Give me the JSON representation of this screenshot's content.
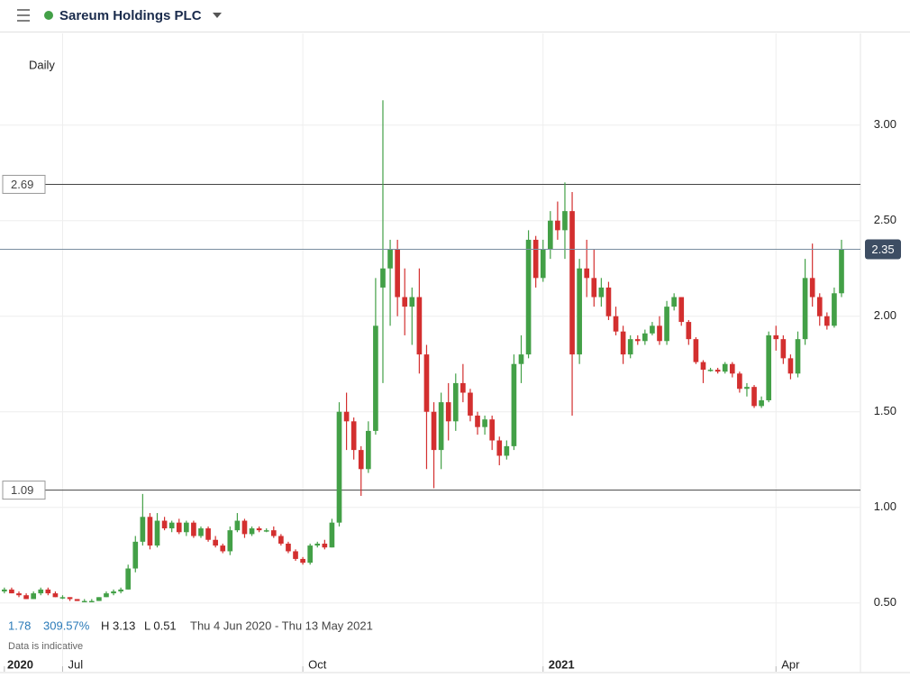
{
  "header": {
    "title": "Sareum Holdings PLC"
  },
  "chart_data": {
    "type": "candlestick",
    "interval": "Daily",
    "up_color": "#43a047",
    "down_color": "#d32f2f",
    "grid": true,
    "xlim": [
      -0.6,
      117.6
    ],
    "xticks": [
      {
        "value": 0,
        "label": "2020"
      },
      {
        "value": 8,
        "label": "Jul"
      },
      {
        "value": 41,
        "label": "Oct"
      },
      {
        "value": 74,
        "label": "2021"
      },
      {
        "value": 106,
        "label": "Apr"
      }
    ],
    "ylim": [
      0.14,
      3.48
    ],
    "yticks": [
      {
        "value": 0.5,
        "label": "0.50"
      },
      {
        "value": 1,
        "label": "1.00"
      },
      {
        "value": 1.5,
        "label": "1.50"
      },
      {
        "value": 2,
        "label": "2.00"
      },
      {
        "value": 2.5,
        "label": "2.50"
      },
      {
        "value": 3,
        "label": "3.00"
      }
    ],
    "hlines": [
      2.69,
      1.09
    ],
    "last_price": 2.35,
    "stats": {
      "change": "1.78",
      "change_pct": "309.57%",
      "high": "H 3.13",
      "low": "L 0.51",
      "range": "Thu 4 Jun 2020 - Thu 13 May 2021",
      "note": "Data is indicative"
    },
    "candles": [
      [
        0.56,
        0.58,
        0.55,
        0.57
      ],
      [
        0.57,
        0.58,
        0.55,
        0.55
      ],
      [
        0.55,
        0.56,
        0.53,
        0.54
      ],
      [
        0.54,
        0.55,
        0.52,
        0.52
      ],
      [
        0.52,
        0.56,
        0.52,
        0.55
      ],
      [
        0.55,
        0.58,
        0.54,
        0.57
      ],
      [
        0.57,
        0.58,
        0.54,
        0.55
      ],
      [
        0.55,
        0.56,
        0.53,
        0.53
      ],
      [
        0.53,
        0.54,
        0.52,
        0.53
      ],
      [
        0.53,
        0.53,
        0.51,
        0.52
      ],
      [
        0.52,
        0.52,
        0.51,
        0.51
      ],
      [
        0.51,
        0.52,
        0.51,
        0.51
      ],
      [
        0.51,
        0.52,
        0.51,
        0.51
      ],
      [
        0.51,
        0.53,
        0.51,
        0.53
      ],
      [
        0.53,
        0.56,
        0.53,
        0.55
      ],
      [
        0.55,
        0.57,
        0.54,
        0.56
      ],
      [
        0.56,
        0.58,
        0.55,
        0.57
      ],
      [
        0.57,
        0.7,
        0.57,
        0.68
      ],
      [
        0.68,
        0.85,
        0.66,
        0.82
      ],
      [
        0.82,
        1.07,
        0.8,
        0.95
      ],
      [
        0.95,
        0.97,
        0.78,
        0.8
      ],
      [
        0.8,
        0.97,
        0.79,
        0.93
      ],
      [
        0.93,
        0.95,
        0.88,
        0.89
      ],
      [
        0.89,
        0.93,
        0.87,
        0.92
      ],
      [
        0.92,
        0.94,
        0.86,
        0.87
      ],
      [
        0.87,
        0.93,
        0.85,
        0.92
      ],
      [
        0.92,
        0.93,
        0.84,
        0.85
      ],
      [
        0.85,
        0.9,
        0.84,
        0.89
      ],
      [
        0.89,
        0.9,
        0.82,
        0.83
      ],
      [
        0.83,
        0.85,
        0.79,
        0.8
      ],
      [
        0.8,
        0.81,
        0.76,
        0.77
      ],
      [
        0.77,
        0.9,
        0.75,
        0.88
      ],
      [
        0.88,
        0.97,
        0.87,
        0.93
      ],
      [
        0.93,
        0.94,
        0.84,
        0.86
      ],
      [
        0.86,
        0.9,
        0.85,
        0.89
      ],
      [
        0.89,
        0.9,
        0.87,
        0.88
      ],
      [
        0.88,
        0.89,
        0.87,
        0.88
      ],
      [
        0.88,
        0.9,
        0.84,
        0.85
      ],
      [
        0.85,
        0.86,
        0.8,
        0.81
      ],
      [
        0.81,
        0.82,
        0.76,
        0.77
      ],
      [
        0.77,
        0.78,
        0.72,
        0.73
      ],
      [
        0.73,
        0.74,
        0.7,
        0.71
      ],
      [
        0.71,
        0.81,
        0.7,
        0.8
      ],
      [
        0.8,
        0.82,
        0.79,
        0.81
      ],
      [
        0.81,
        0.83,
        0.78,
        0.79
      ],
      [
        0.79,
        0.94,
        0.79,
        0.92
      ],
      [
        0.92,
        1.55,
        0.9,
        1.5
      ],
      [
        1.5,
        1.6,
        1.3,
        1.45
      ],
      [
        1.45,
        1.47,
        1.25,
        1.3
      ],
      [
        1.3,
        1.32,
        1.06,
        1.2
      ],
      [
        1.2,
        1.45,
        1.18,
        1.4
      ],
      [
        1.4,
        2.2,
        1.38,
        1.95
      ],
      [
        2.15,
        3.13,
        1.65,
        2.25
      ],
      [
        2.25,
        2.4,
        1.95,
        2.35
      ],
      [
        2.35,
        2.4,
        2.0,
        2.1
      ],
      [
        2.1,
        2.25,
        1.9,
        2.05
      ],
      [
        2.05,
        2.15,
        1.85,
        2.1
      ],
      [
        2.1,
        2.25,
        1.7,
        1.8
      ],
      [
        1.8,
        1.85,
        1.2,
        1.5
      ],
      [
        1.5,
        1.55,
        1.1,
        1.3
      ],
      [
        1.3,
        1.6,
        1.2,
        1.55
      ],
      [
        1.55,
        1.65,
        1.35,
        1.45
      ],
      [
        1.45,
        1.7,
        1.4,
        1.65
      ],
      [
        1.65,
        1.75,
        1.55,
        1.6
      ],
      [
        1.6,
        1.62,
        1.45,
        1.48
      ],
      [
        1.48,
        1.5,
        1.38,
        1.42
      ],
      [
        1.42,
        1.48,
        1.38,
        1.46
      ],
      [
        1.46,
        1.48,
        1.3,
        1.35
      ],
      [
        1.35,
        1.37,
        1.22,
        1.27
      ],
      [
        1.27,
        1.35,
        1.25,
        1.32
      ],
      [
        1.32,
        1.8,
        1.3,
        1.75
      ],
      [
        1.75,
        1.9,
        1.65,
        1.8
      ],
      [
        1.8,
        2.45,
        1.78,
        2.4
      ],
      [
        2.4,
        2.42,
        2.15,
        2.2
      ],
      [
        2.2,
        2.4,
        2.18,
        2.35
      ],
      [
        2.35,
        2.55,
        2.3,
        2.5
      ],
      [
        2.5,
        2.6,
        2.4,
        2.45
      ],
      [
        2.45,
        2.7,
        2.3,
        2.55
      ],
      [
        2.55,
        2.65,
        1.48,
        1.8
      ],
      [
        1.8,
        2.3,
        1.75,
        2.25
      ],
      [
        2.25,
        2.4,
        2.1,
        2.2
      ],
      [
        2.2,
        2.35,
        2.05,
        2.1
      ],
      [
        2.1,
        2.2,
        2.05,
        2.15
      ],
      [
        2.15,
        2.18,
        1.98,
        2.0
      ],
      [
        2.0,
        2.05,
        1.9,
        1.92
      ],
      [
        1.92,
        1.95,
        1.75,
        1.8
      ],
      [
        1.8,
        1.9,
        1.78,
        1.88
      ],
      [
        1.88,
        1.9,
        1.85,
        1.87
      ],
      [
        1.87,
        1.93,
        1.85,
        1.91
      ],
      [
        1.91,
        1.97,
        1.9,
        1.95
      ],
      [
        1.95,
        2.0,
        1.85,
        1.87
      ],
      [
        1.87,
        2.08,
        1.85,
        2.05
      ],
      [
        2.05,
        2.12,
        2.03,
        2.1
      ],
      [
        2.1,
        2.1,
        1.95,
        1.97
      ],
      [
        1.97,
        1.98,
        1.85,
        1.88
      ],
      [
        1.88,
        1.89,
        1.75,
        1.76
      ],
      [
        1.76,
        1.77,
        1.65,
        1.72
      ],
      [
        1.72,
        1.73,
        1.71,
        1.72
      ],
      [
        1.72,
        1.73,
        1.7,
        1.71
      ],
      [
        1.71,
        1.76,
        1.7,
        1.75
      ],
      [
        1.75,
        1.76,
        1.68,
        1.7
      ],
      [
        1.7,
        1.71,
        1.6,
        1.62
      ],
      [
        1.62,
        1.65,
        1.58,
        1.63
      ],
      [
        1.63,
        1.64,
        1.52,
        1.53
      ],
      [
        1.53,
        1.58,
        1.52,
        1.56
      ],
      [
        1.56,
        1.92,
        1.55,
        1.9
      ],
      [
        1.9,
        1.95,
        1.82,
        1.88
      ],
      [
        1.88,
        1.9,
        1.75,
        1.78
      ],
      [
        1.78,
        1.8,
        1.67,
        1.7
      ],
      [
        1.7,
        1.92,
        1.68,
        1.88
      ],
      [
        1.88,
        2.3,
        1.85,
        2.2
      ],
      [
        2.2,
        2.38,
        2.05,
        2.1
      ],
      [
        2.1,
        2.12,
        1.95,
        2.0
      ],
      [
        2.0,
        2.02,
        1.93,
        1.95
      ],
      [
        1.95,
        2.15,
        1.94,
        2.12
      ],
      [
        2.12,
        2.4,
        2.1,
        2.35
      ]
    ]
  }
}
